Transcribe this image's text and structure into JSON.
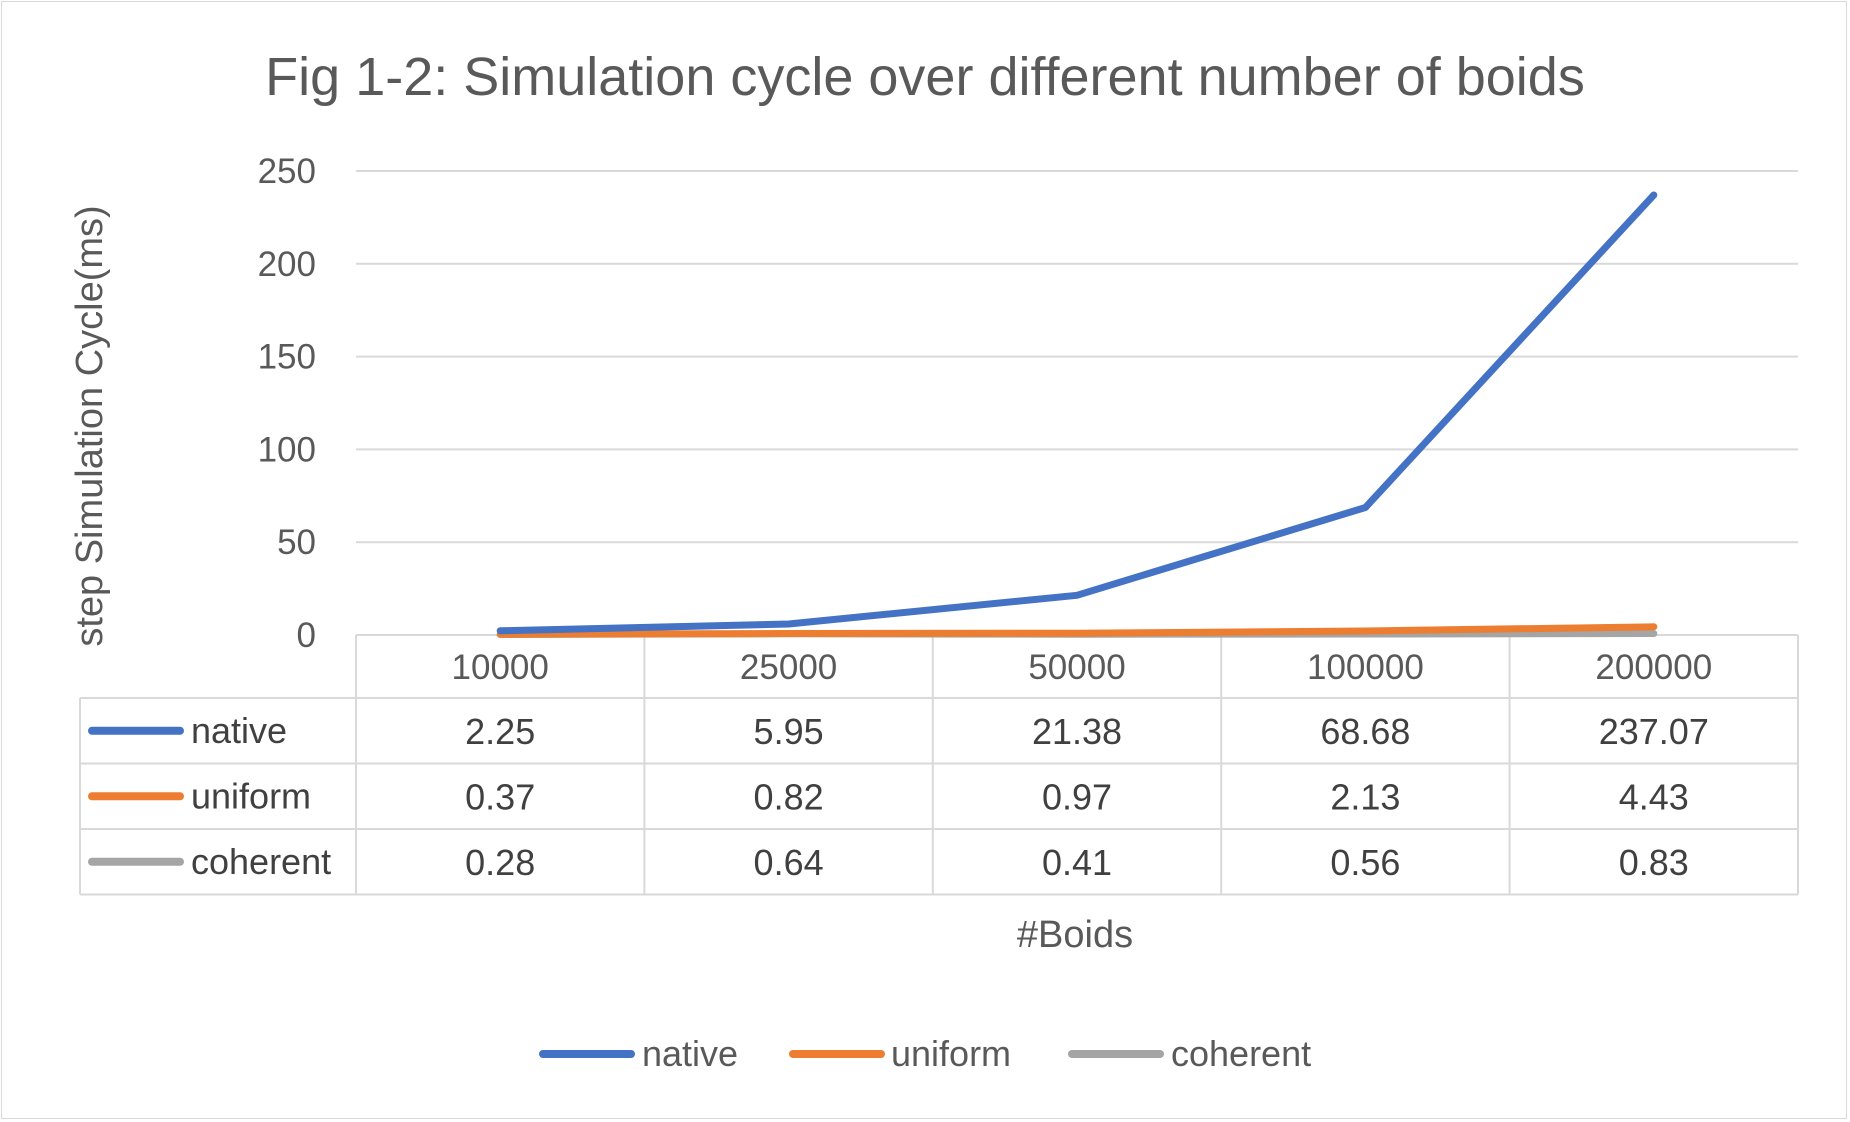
{
  "chart_data": {
    "type": "line",
    "title": "Fig 1-2: Simulation cycle over different number of boids",
    "xlabel": "#Boids",
    "ylabel": "step Simulation Cycle(ms)",
    "categories": [
      "10000",
      "25000",
      "50000",
      "100000",
      "200000"
    ],
    "ylim": [
      0,
      250
    ],
    "yticks": [
      0,
      50,
      100,
      150,
      200,
      250
    ],
    "grid": true,
    "legend_position": "bottom",
    "data_table": true,
    "series": [
      {
        "name": "native",
        "color": "#4472C4",
        "values": [
          2.25,
          5.95,
          21.38,
          68.68,
          237.07
        ]
      },
      {
        "name": "uniform",
        "color": "#ED7D31",
        "values": [
          0.37,
          0.82,
          0.97,
          2.13,
          4.43
        ]
      },
      {
        "name": "coherent",
        "color": "#A5A5A5",
        "values": [
          0.28,
          0.64,
          0.41,
          0.56,
          0.83
        ]
      }
    ]
  }
}
